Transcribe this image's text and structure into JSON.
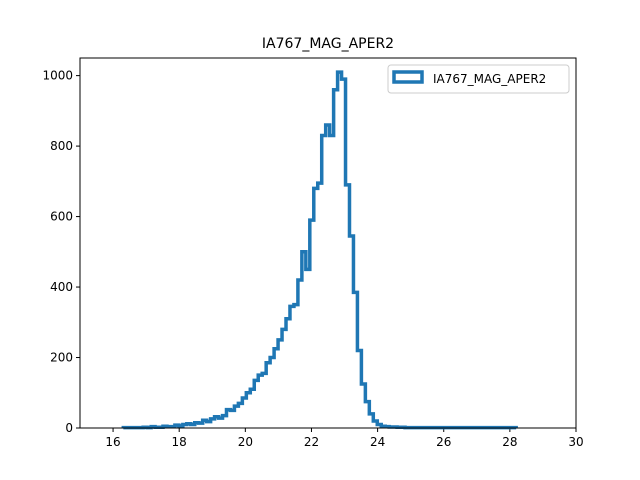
{
  "chart_data": {
    "type": "histogram-step",
    "title": "IA767_MAG_APER2",
    "xlabel": "",
    "ylabel": "",
    "xlim": [
      15,
      30
    ],
    "ylim": [
      0,
      1050
    ],
    "xticks": [
      16,
      18,
      20,
      22,
      24,
      26,
      28,
      30
    ],
    "yticks": [
      0,
      200,
      400,
      600,
      800,
      1000
    ],
    "grid": false,
    "legend": {
      "placement": "top-right",
      "entries": [
        "IA767_MAG_APER2"
      ]
    },
    "color": "#1f77b4",
    "series": [
      {
        "name": "IA767_MAG_APER2",
        "bin_edges": [
          16.31,
          16.43,
          16.55,
          16.67,
          16.79,
          16.91,
          17.03,
          17.15,
          17.27,
          17.39,
          17.51,
          17.63,
          17.75,
          17.87,
          17.99,
          18.11,
          18.23,
          18.35,
          18.47,
          18.59,
          18.71,
          18.83,
          18.95,
          19.07,
          19.19,
          19.31,
          19.43,
          19.55,
          19.67,
          19.79,
          19.91,
          20.03,
          20.15,
          20.27,
          20.39,
          20.51,
          20.63,
          20.75,
          20.87,
          20.99,
          21.11,
          21.23,
          21.35,
          21.47,
          21.59,
          21.71,
          21.83,
          21.95,
          22.07,
          22.19,
          22.31,
          22.43,
          22.55,
          22.67,
          22.79,
          22.91,
          23.03,
          23.15,
          23.27,
          23.39,
          23.51,
          23.63,
          23.75,
          23.87,
          23.99,
          24.11,
          24.23,
          24.35,
          24.47,
          24.59,
          24.71,
          24.83,
          24.95,
          25.07,
          25.19,
          25.31,
          25.43,
          25.55,
          25.67,
          25.79,
          25.91,
          26.03,
          26.15,
          26.27,
          26.39,
          26.51,
          26.63,
          26.75,
          26.87,
          26.99,
          27.11,
          27.23,
          27.35,
          27.47,
          27.59,
          27.71,
          27.83,
          27.95,
          28.07,
          28.19
        ],
        "counts": [
          1,
          1,
          1,
          1,
          1,
          2,
          1,
          4,
          2,
          2,
          5,
          4,
          4,
          8,
          6,
          10,
          12,
          10,
          15,
          14,
          22,
          18,
          26,
          32,
          28,
          35,
          52,
          50,
          62,
          70,
          85,
          100,
          110,
          135,
          150,
          155,
          185,
          200,
          225,
          250,
          280,
          310,
          345,
          350,
          420,
          500,
          450,
          590,
          680,
          695,
          830,
          860,
          830,
          960,
          1010,
          990,
          690,
          545,
          385,
          220,
          125,
          75,
          40,
          20,
          10,
          5,
          4,
          3,
          3,
          2,
          2,
          1,
          1,
          1,
          1,
          1,
          1,
          1,
          1,
          1,
          1,
          1,
          1,
          1,
          1,
          1,
          1,
          1,
          1,
          1,
          1,
          1,
          1,
          1,
          1,
          1,
          1,
          1,
          1
        ]
      }
    ]
  }
}
